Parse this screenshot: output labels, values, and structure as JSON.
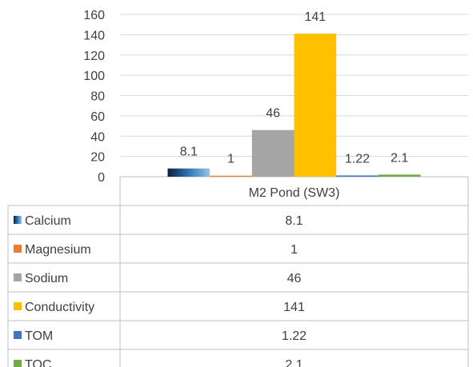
{
  "chart_data": {
    "type": "bar",
    "categories": [
      "M2 Pond (SW3)"
    ],
    "series": [
      {
        "name": "Calcium",
        "values": [
          8.1
        ],
        "color": "#2E75B6",
        "icon": "gradient-square"
      },
      {
        "name": "Magnesium",
        "values": [
          1
        ],
        "color": "#ED7D31",
        "icon": "solid-square"
      },
      {
        "name": "Sodium",
        "values": [
          46
        ],
        "color": "#A5A5A5",
        "icon": "solid-square"
      },
      {
        "name": "Conductivity",
        "values": [
          141
        ],
        "color": "#FFC000",
        "icon": "solid-square"
      },
      {
        "name": "TOM",
        "values": [
          1.22
        ],
        "color": "#4472C4",
        "icon": "solid-square"
      },
      {
        "name": "TOC",
        "values": [
          2.1
        ],
        "color": "#70AD47",
        "icon": "solid-square"
      }
    ],
    "data_labels": [
      "8.1",
      "1",
      "46",
      "141",
      "1.22",
      "2.1"
    ],
    "y_ticks": [
      "0",
      "20",
      "40",
      "60",
      "80",
      "100",
      "120",
      "140",
      "160"
    ],
    "ylim": [
      0,
      160
    ],
    "grid": true,
    "legend": "data-table"
  }
}
